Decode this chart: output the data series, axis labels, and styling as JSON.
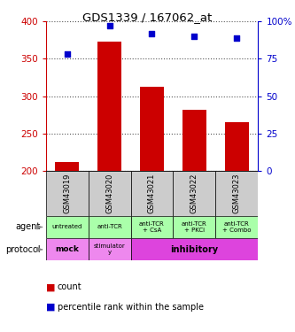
{
  "title": "GDS1339 / 167062_at",
  "samples": [
    "GSM43019",
    "GSM43020",
    "GSM43021",
    "GSM43022",
    "GSM43023"
  ],
  "counts": [
    212,
    373,
    313,
    282,
    265
  ],
  "percentiles": [
    78,
    97,
    92,
    90,
    89
  ],
  "ylim_left": [
    200,
    400
  ],
  "ylim_right": [
    0,
    100
  ],
  "yticks_left": [
    200,
    250,
    300,
    350,
    400
  ],
  "yticks_right": [
    0,
    25,
    50,
    75,
    100
  ],
  "bar_color": "#cc0000",
  "dot_color": "#0000cc",
  "agent_labels": [
    "untreated",
    "anti-TCR",
    "anti-TCR\n+ CsA",
    "anti-TCR\n+ PKCi",
    "anti-TCR\n+ Combo"
  ],
  "agent_bg": "#aaffaa",
  "sample_bg": "#cccccc",
  "protocol_mock_bg": "#ee88ee",
  "protocol_stim_bg": "#ee88ee",
  "protocol_inhib_bg": "#dd44dd",
  "grid_color": "#555555",
  "left_tick_color": "#cc0000",
  "right_tick_color": "#0000cc"
}
